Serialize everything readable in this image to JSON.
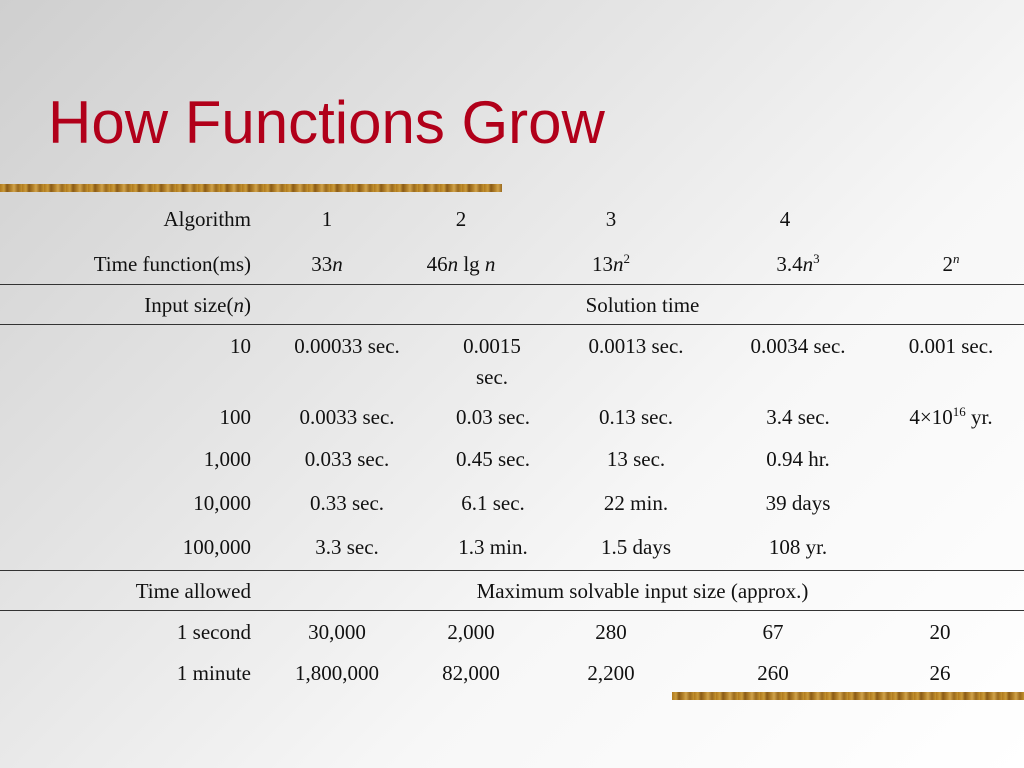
{
  "title": "How Functions Grow",
  "header": {
    "algorithm_label": "Algorithm",
    "algorithms": [
      "1",
      "2",
      "3",
      "4"
    ],
    "time_function_label": "Time function(ms)",
    "time_functions": [
      {
        "coef": "33",
        "var": "n"
      },
      {
        "coef": "46",
        "var": "n",
        "suffix": " lg ",
        "var2": "n"
      },
      {
        "coef": "13",
        "var": "n",
        "exp": "2"
      },
      {
        "coef": "3.4",
        "var": "n",
        "exp": "3"
      },
      {
        "coef": "2",
        "exp_var": "n"
      }
    ]
  },
  "section1": {
    "row_label_prefix": "Input size(",
    "row_label_var": "n",
    "row_label_suffix": ")",
    "heading": "Solution time",
    "rows": [
      {
        "label": "10",
        "cells": [
          "0.00033 sec.",
          "0.0015 sec.",
          "0.0013 sec.",
          "0.0034 sec.",
          "0.001 sec."
        ]
      },
      {
        "label": "100",
        "cells": [
          "0.0033 sec.",
          "0.03 sec.",
          "0.13 sec.",
          "3.4 sec."
        ],
        "last": {
          "pre": "4×10",
          "exp": "16",
          "post": " yr."
        }
      },
      {
        "label": "1,000",
        "cells": [
          "0.033 sec.",
          "0.45 sec.",
          "13 sec.",
          "0.94 hr.",
          ""
        ]
      },
      {
        "label": "10,000",
        "cells": [
          "0.33 sec.",
          "6.1 sec.",
          "22 min.",
          "39 days",
          ""
        ]
      },
      {
        "label": "100,000",
        "cells": [
          "3.3 sec.",
          "1.3 min.",
          "1.5 days",
          "108 yr.",
          ""
        ]
      }
    ]
  },
  "section2": {
    "row_label": "Time allowed",
    "heading": "Maximum solvable input size (approx.)",
    "rows": [
      {
        "label": "1 second",
        "cells": [
          "30,000",
          "2,000",
          "280",
          "67",
          "20"
        ]
      },
      {
        "label": "1 minute",
        "cells": [
          "1,800,000",
          "82,000",
          "2,200",
          "260",
          "26"
        ]
      }
    ]
  },
  "colors": {
    "title": "#b1001a",
    "text": "#111111",
    "rule": "#333333"
  }
}
